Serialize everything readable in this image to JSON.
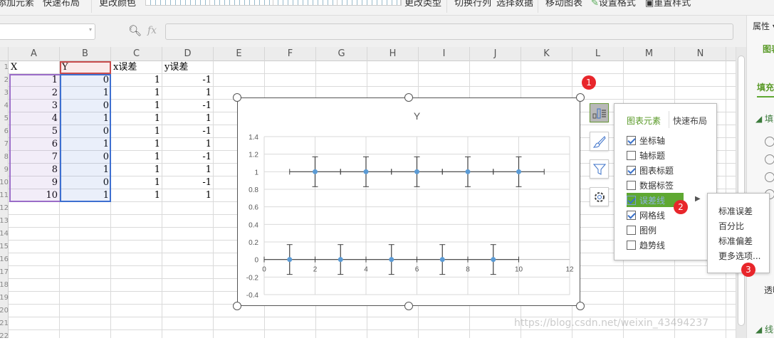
{
  "ribbon": {
    "items": [
      "添加元素",
      "快速布局",
      "更改颜色",
      "更改类型",
      "切换行列",
      "选择数据",
      "移动图表",
      "设置格式",
      "重置样式"
    ]
  },
  "formula_bar": {
    "name_box": "",
    "fx_label": "fx",
    "zoom_icon": "magnifier-icon",
    "value": ""
  },
  "columns": [
    "A",
    "B",
    "C",
    "D",
    "E",
    "F",
    "G",
    "H",
    "I",
    "J",
    "K",
    "L",
    "M",
    "N"
  ],
  "row_numbers": [
    "1",
    "2",
    "3",
    "4",
    "5",
    "6",
    "7",
    "8",
    "9",
    "10",
    "11",
    "12",
    "13",
    "14",
    "15",
    "16",
    "17",
    "18",
    "19",
    "20",
    "21",
    "22"
  ],
  "sheet": {
    "headers": [
      "X",
      "Y",
      "x误差",
      "y误差"
    ],
    "rows": [
      [
        "1",
        "0",
        "1",
        "-1"
      ],
      [
        "2",
        "1",
        "1",
        "1"
      ],
      [
        "3",
        "0",
        "1",
        "-1"
      ],
      [
        "4",
        "1",
        "1",
        "1"
      ],
      [
        "5",
        "0",
        "1",
        "-1"
      ],
      [
        "6",
        "1",
        "1",
        "1"
      ],
      [
        "7",
        "0",
        "1",
        "-1"
      ],
      [
        "8",
        "1",
        "1",
        "1"
      ],
      [
        "9",
        "0",
        "1",
        "-1"
      ],
      [
        "10",
        "1",
        "1",
        "1"
      ]
    ]
  },
  "chart_data": {
    "type": "scatter",
    "title": "Y",
    "x": [
      1,
      2,
      3,
      4,
      5,
      6,
      7,
      8,
      9,
      10
    ],
    "y": [
      0,
      1,
      0,
      1,
      0,
      1,
      0,
      1,
      0,
      1
    ],
    "x_error": 1,
    "y_error": 0.17,
    "xlim": [
      0,
      12
    ],
    "ylim": [
      -0.4,
      1.4
    ],
    "xticks": [
      "0",
      "2",
      "4",
      "6",
      "8",
      "10",
      "12"
    ],
    "yticks": [
      "-0.4",
      "-0.2",
      "0",
      "0.2",
      "0.4",
      "0.6",
      "0.8",
      "1",
      "1.2",
      "1.4"
    ],
    "grid": true,
    "legend": "none",
    "marker_color": "#5b9bd5",
    "error_bar_color": "#404040"
  },
  "side_buttons": [
    "chart-elements-icon",
    "chart-style-brush-icon",
    "chart-filter-icon",
    "chart-settings-gear-icon"
  ],
  "popup": {
    "tabs": [
      "图表元素",
      "快速布局"
    ],
    "items": [
      {
        "label": "坐标轴",
        "checked": true
      },
      {
        "label": "轴标题",
        "checked": false
      },
      {
        "label": "图表标题",
        "checked": true
      },
      {
        "label": "数据标签",
        "checked": false
      },
      {
        "label": "误差线",
        "checked": true,
        "highlighted": true
      },
      {
        "label": "网格线",
        "checked": true
      },
      {
        "label": "图例",
        "checked": false
      },
      {
        "label": "趋势线",
        "checked": false
      }
    ],
    "accent": "#5fa832"
  },
  "submenu": {
    "items": [
      "标准误差",
      "百分比",
      "标准偏差",
      "更多选项..."
    ]
  },
  "badges": [
    "1",
    "2",
    "3"
  ],
  "panel": {
    "title": "属性 ▾",
    "tab": "图表",
    "sub_tab": "填充",
    "section_fill": "◢ 填充",
    "transparency": "透明",
    "section_line": "◢ 线条"
  },
  "watermark": "https://blog.csdn.net/weixin_43494237"
}
